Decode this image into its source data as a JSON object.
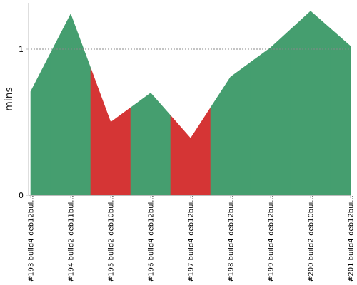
{
  "chart_data": {
    "type": "area",
    "ylabel": "mins",
    "ylim": [
      0,
      1.3
    ],
    "yticks": [
      0,
      1
    ],
    "reference_line": 1,
    "categories": [
      "#193 build4-deb12bui...",
      "#194 build2-deb11bui...",
      "#195 build2-deb10bui...",
      "#196 build4-deb12bui...",
      "#197 build4-deb12bui...",
      "#198 build4-deb12bui...",
      "#199 build4-deb12bui...",
      "#200 build2-deb10bui...",
      "#201 build4-deb12bui..."
    ],
    "values": [
      0.71,
      1.24,
      0.5,
      0.7,
      0.39,
      0.81,
      1.01,
      1.26,
      1.02
    ],
    "status": [
      "success",
      "success",
      "failure",
      "success",
      "failure",
      "success",
      "success",
      "success",
      "success"
    ],
    "colors": {
      "success": "#459e6f",
      "failure": "#d53535"
    }
  }
}
